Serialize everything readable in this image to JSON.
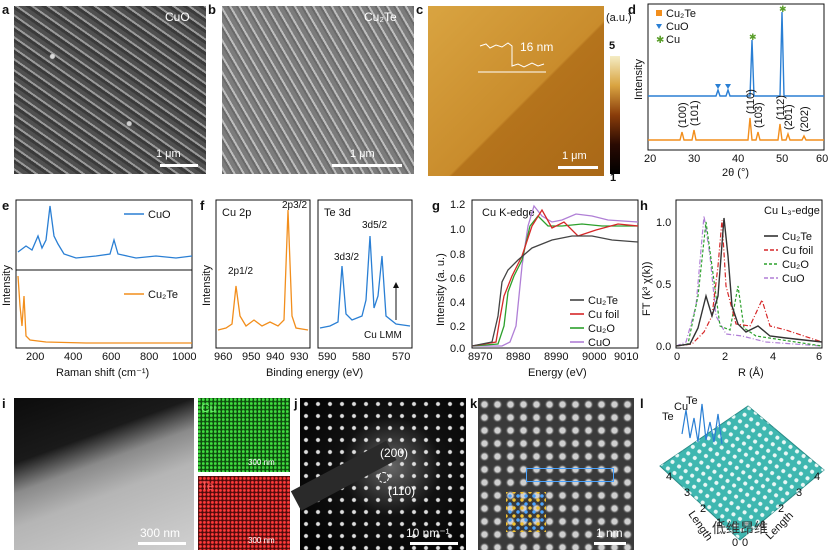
{
  "panels": {
    "a": {
      "label": "a",
      "tag": "CuO",
      "scale": "1 μm"
    },
    "b": {
      "label": "b",
      "tag": "Cu₂Te",
      "scale": "1 μm"
    },
    "c": {
      "label": "c",
      "height": "16 nm",
      "scale": "1 μm",
      "colorbar_unit": "(a.u.)",
      "colorbar_max": "5",
      "colorbar_min": "1"
    },
    "d": {
      "label": "d",
      "legend": [
        "Cu₂Te",
        "CuO",
        "Cu"
      ],
      "ylabel": "Intensity",
      "xlabel": "2θ (°)",
      "xticks": [
        "20",
        "30",
        "40",
        "50",
        "60"
      ],
      "peaks": [
        "(100)",
        "(101)",
        "(110)",
        "(103)",
        "(112)",
        "(201)",
        "(202)"
      ]
    },
    "e": {
      "label": "e",
      "legend": [
        "CuO",
        "Cu₂Te"
      ],
      "ylabel": "Intensity",
      "xlabel": "Raman shift (cm⁻¹)",
      "xticks": [
        "200",
        "400",
        "600",
        "800",
        "1000"
      ]
    },
    "f": {
      "label": "f",
      "left_title": "Cu 2p",
      "right_title": "Te 3d",
      "ylabel": "Intensity",
      "xlabel": "Binding energy (eV)",
      "left_xticks": [
        "960",
        "950",
        "940",
        "930"
      ],
      "right_xticks": [
        "590",
        "580",
        "570"
      ],
      "annot": [
        "2p1/2",
        "2p3/2",
        "3d3/2",
        "3d5/2",
        "Cu LMM"
      ]
    },
    "g": {
      "label": "g",
      "title": "Cu K-edge",
      "ylabel": "Intensity (a. u.)",
      "xlabel": "Energy (eV)",
      "xticks": [
        "8970",
        "8980",
        "8990",
        "9000",
        "9010"
      ],
      "yticks": [
        "0.0",
        "0.2",
        "0.4",
        "0.6",
        "0.8",
        "1.0",
        "1.2"
      ],
      "legend": [
        "Cu₂Te",
        "Cu foil",
        "Cu₂O",
        "CuO"
      ]
    },
    "h": {
      "label": "h",
      "title": "Cu L₃-edge",
      "ylabel": "FT (k³ χ(k))",
      "xlabel": "R (Å)",
      "xticks": [
        "0",
        "2",
        "4",
        "6"
      ],
      "yticks": [
        "0.0",
        "0.5",
        "1.0"
      ],
      "legend": [
        "Cu₂Te",
        "Cu foil",
        "Cu₂O",
        "CuO"
      ]
    },
    "i": {
      "label": "i",
      "scale_main": "300 nm",
      "map1": "Cu",
      "map2": "Te",
      "scale_map1": "300 nm",
      "scale_map2": "300 nm"
    },
    "j": {
      "label": "j",
      "spot1": "(200)",
      "spot2": "(110)",
      "scale": "10 nm⁻¹"
    },
    "k": {
      "label": "k",
      "scale": "1 nm"
    },
    "l": {
      "label": "l",
      "atoms": [
        "Te",
        "Cu",
        "Te"
      ],
      "ax1": "Length",
      "ax2": "Length",
      "ticks1": [
        "0",
        "1",
        "2",
        "3",
        "4"
      ],
      "ticks2": [
        "0",
        "1",
        "2",
        "3",
        "4"
      ],
      "watermark": "低维昂维"
    }
  },
  "colors": {
    "orange": "#f28e1c",
    "blue": "#2a7fd4",
    "red": "#d62728",
    "green": "#2ca02c",
    "purple": "#b07fd6",
    "black": "#222222"
  }
}
